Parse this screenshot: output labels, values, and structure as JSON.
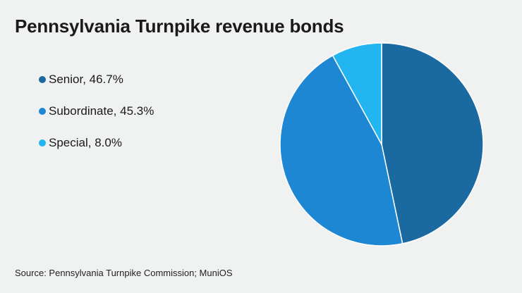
{
  "chart_data": {
    "type": "pie",
    "title": "Pennsylvania Turnpike revenue bonds",
    "series": [
      {
        "name": "Senior",
        "value": 46.7,
        "label": "Senior, 46.7%",
        "color": "#1b69a1"
      },
      {
        "name": "Subordinate",
        "value": 45.3,
        "label": "Subordinate, 45.3%",
        "color": "#1e87d3"
      },
      {
        "name": "Special",
        "value": 8.0,
        "label": "Special, 8.0%",
        "color": "#22b5ef"
      }
    ],
    "legend_position": "left",
    "source": "Source: Pennsylvania Turnpike Commission; MuniOS"
  }
}
